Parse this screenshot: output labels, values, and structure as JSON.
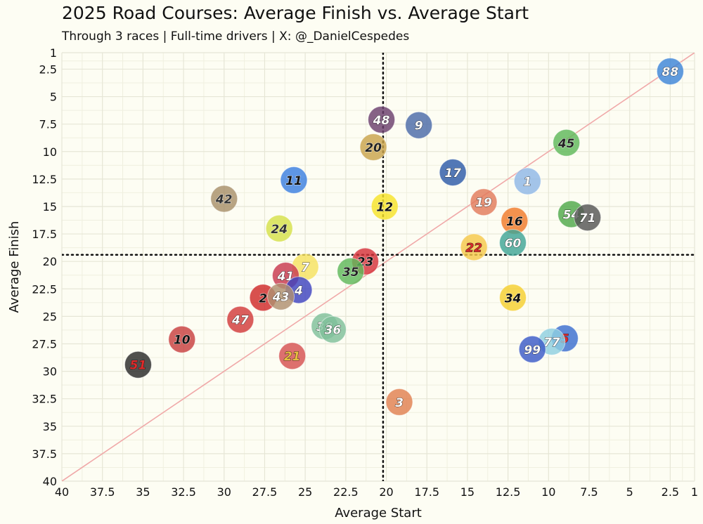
{
  "chart_data": {
    "type": "scatter",
    "title": "2025 Road Courses: Average Finish vs. Average Start",
    "subtitle": "Through 3 races | Full-time drivers | X: @_DanielCespedes",
    "xlabel": "Average Start",
    "ylabel": "Average Finish",
    "xlim": [
      40,
      1
    ],
    "ylim": [
      40,
      1
    ],
    "x_reversed": true,
    "y_reversed": true,
    "xticks": [
      40,
      37.5,
      35,
      32.5,
      30,
      27.5,
      25,
      22.5,
      20,
      17.5,
      15,
      12.5,
      10,
      7.5,
      5,
      2.5,
      1
    ],
    "yticks": [
      1,
      2.5,
      5,
      7.5,
      10,
      12.5,
      15,
      17.5,
      20,
      22.5,
      25,
      27.5,
      30,
      32.5,
      35,
      37.5,
      40
    ],
    "grid": true,
    "reference_lines": {
      "avg_start": 20.2,
      "avg_finish": 19.4,
      "style": "dotted"
    },
    "diagonal": {
      "from": [
        40,
        40
      ],
      "to": [
        1,
        1
      ],
      "color": "#f0a8a8"
    },
    "points": [
      {
        "label": "88",
        "x": 2.5,
        "y": 2.7,
        "color": "#3d85d8",
        "text": "#ffffff"
      },
      {
        "label": "48",
        "x": 20.3,
        "y": 7.1,
        "color": "#6b3f6e",
        "text": "#ffffff"
      },
      {
        "label": "9",
        "x": 18.0,
        "y": 7.6,
        "color": "#4a6aa8",
        "text": "#ffffff"
      },
      {
        "label": "20",
        "x": 20.8,
        "y": 9.6,
        "color": "#c9a34c",
        "text": "#222222"
      },
      {
        "label": "45",
        "x": 8.9,
        "y": 9.2,
        "color": "#5fb85a",
        "text": "#222222"
      },
      {
        "label": "17",
        "x": 15.9,
        "y": 11.9,
        "color": "#2d5aa8",
        "text": "#ffffff"
      },
      {
        "label": "1",
        "x": 11.3,
        "y": 12.7,
        "color": "#8fb7e6",
        "text": "#ffffff"
      },
      {
        "label": "11",
        "x": 25.7,
        "y": 12.6,
        "color": "#3b7fe0",
        "text": "#111111"
      },
      {
        "label": "42",
        "x": 30.0,
        "y": 14.3,
        "color": "#a8906a",
        "text": "#333333"
      },
      {
        "label": "12",
        "x": 20.1,
        "y": 15.0,
        "color": "#f7e32a",
        "text": "#111111"
      },
      {
        "label": "19",
        "x": 14.0,
        "y": 14.6,
        "color": "#e27a5a",
        "text": "#ffffff"
      },
      {
        "label": "16",
        "x": 12.1,
        "y": 16.3,
        "color": "#f07a2a",
        "text": "#111111"
      },
      {
        "label": "54",
        "x": 8.6,
        "y": 15.7,
        "color": "#4fa84a",
        "text": "#ffffff"
      },
      {
        "label": "71",
        "x": 7.6,
        "y": 16.0,
        "color": "#555555",
        "text": "#ffffff"
      },
      {
        "label": "24",
        "x": 26.6,
        "y": 17.0,
        "color": "#d6e04a",
        "text": "#333333"
      },
      {
        "label": "60",
        "x": 12.2,
        "y": 18.3,
        "color": "#3fa596",
        "text": "#ffffff"
      },
      {
        "label": "22",
        "x": 14.6,
        "y": 18.7,
        "color": "#f5c84a",
        "text": "#d62a2a"
      },
      {
        "label": "23",
        "x": 21.3,
        "y": 20.0,
        "color": "#d6323a",
        "text": "#111111"
      },
      {
        "label": "7",
        "x": 25.0,
        "y": 20.5,
        "color": "#f5e260",
        "text": "#ffffff"
      },
      {
        "label": "35",
        "x": 22.2,
        "y": 20.9,
        "color": "#5fb85a",
        "text": "#222222"
      },
      {
        "label": "41",
        "x": 26.2,
        "y": 21.3,
        "color": "#c8384e",
        "text": "#ffffff"
      },
      {
        "label": "4",
        "x": 25.4,
        "y": 22.6,
        "color": "#3e43c0",
        "text": "#ffffff"
      },
      {
        "label": "2",
        "x": 27.6,
        "y": 23.3,
        "color": "#d02a2a",
        "text": "#111111"
      },
      {
        "label": "43",
        "x": 26.5,
        "y": 23.2,
        "color": "#b09070",
        "text": "#ffffff"
      },
      {
        "label": "34",
        "x": 12.2,
        "y": 23.3,
        "color": "#f5d030",
        "text": "#111111"
      },
      {
        "label": "47",
        "x": 29.0,
        "y": 25.3,
        "color": "#d23a3a",
        "text": "#ffffff"
      },
      {
        "label": "38",
        "x": 23.8,
        "y": 25.9,
        "color": "#7fbf9a",
        "text": "#ffffff"
      },
      {
        "label": "36",
        "x": 23.3,
        "y": 26.2,
        "color": "#7fbf9a",
        "text": "#ffffff"
      },
      {
        "label": "10",
        "x": 32.6,
        "y": 27.1,
        "color": "#c84040",
        "text": "#111111"
      },
      {
        "label": "5",
        "x": 9.0,
        "y": 27.0,
        "color": "#3a6ed0",
        "text": "#e02a2a"
      },
      {
        "label": "77",
        "x": 9.8,
        "y": 27.3,
        "color": "#8fd0e0",
        "text": "#ffffff"
      },
      {
        "label": "99",
        "x": 11.0,
        "y": 28.0,
        "color": "#3a5ac8",
        "text": "#ffffff"
      },
      {
        "label": "21",
        "x": 25.8,
        "y": 28.6,
        "color": "#d65050",
        "text": "#e8c040"
      },
      {
        "label": "51",
        "x": 35.3,
        "y": 29.4,
        "color": "#2a2a2a",
        "text": "#e02a2a"
      },
      {
        "label": "3",
        "x": 19.2,
        "y": 32.8,
        "color": "#e08050",
        "text": "#ffffff"
      }
    ]
  }
}
